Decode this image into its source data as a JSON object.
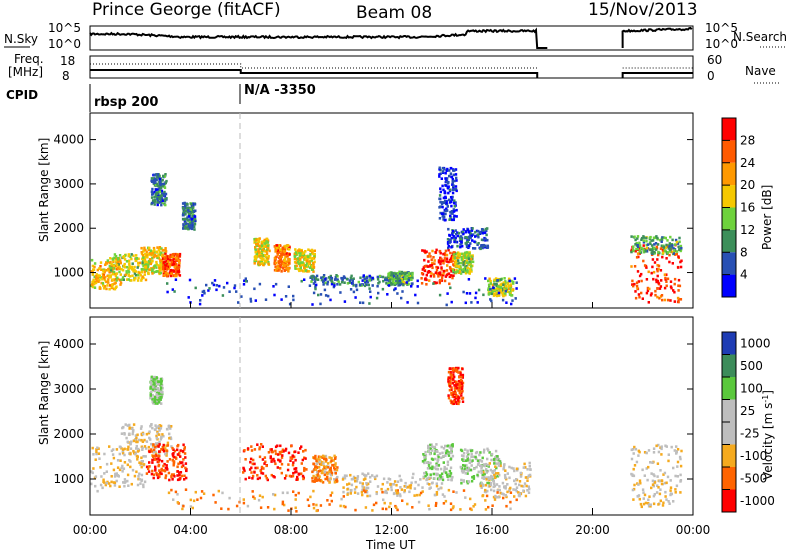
{
  "header": {
    "station": "Prince George (fitACF)",
    "beam": "Beam 08",
    "date": "15/Nov/2013"
  },
  "labels": {
    "nsky": "N.Sky",
    "nsearch": "N.Search",
    "freq_line1": "Freq.",
    "freq_line2": "[MHz]",
    "nave": "Nave",
    "cpid": "CPID",
    "nsky_top": "10^5",
    "nsky_bottom": "10^0",
    "nsearch_top": "10^5",
    "nsearch_bottom": "10^0",
    "freq_top": "18",
    "freq_bottom": "8",
    "nave_top": "60",
    "nave_bottom": "0"
  },
  "cpid": [
    {
      "text": "rbsp 200",
      "start": "00:00"
    },
    {
      "text": "N/A -3350",
      "start": "06:00"
    }
  ],
  "chart_data": [
    {
      "type": "heatmap",
      "panel": "power",
      "ylabel": "Slant Range [km]",
      "ylim": [
        200,
        4600
      ],
      "yticks": [
        1000,
        2000,
        3000,
        4000
      ],
      "colorbar": {
        "label": "Power [dB]",
        "ticks": [
          "28",
          "24",
          "20",
          "16",
          "12",
          "8",
          "4"
        ],
        "colors": [
          "#ff0000",
          "#ff5a00",
          "#ff9900",
          "#f5c800",
          "#6ed23c",
          "#3c8f5a",
          "#2850b4",
          "#0000ff"
        ]
      },
      "blobs": [
        {
          "t": 0.6,
          "r": 1000,
          "dt": 0.6,
          "dr": 350,
          "v": 20
        },
        {
          "t": 1.5,
          "r": 1150,
          "dt": 0.8,
          "dr": 300,
          "v": 16
        },
        {
          "t": 2.5,
          "r": 1300,
          "dt": 0.5,
          "dr": 300,
          "v": 18
        },
        {
          "t": 3.2,
          "r": 1200,
          "dt": 0.35,
          "dr": 250,
          "v": 26
        },
        {
          "t": 2.7,
          "r": 2900,
          "dt": 0.3,
          "dr": 350,
          "v": 8
        },
        {
          "t": 3.9,
          "r": 2300,
          "dt": 0.25,
          "dr": 300,
          "v": 8
        },
        {
          "t": 6.8,
          "r": 1500,
          "dt": 0.3,
          "dr": 300,
          "v": 18
        },
        {
          "t": 7.6,
          "r": 1350,
          "dt": 0.3,
          "dr": 300,
          "v": 24
        },
        {
          "t": 8.5,
          "r": 1300,
          "dt": 0.4,
          "dr": 250,
          "v": 18
        },
        {
          "t": 10.5,
          "r": 850,
          "dt": 1.8,
          "dr": 120,
          "v": 8
        },
        {
          "t": 12.3,
          "r": 900,
          "dt": 0.5,
          "dr": 150,
          "v": 12
        },
        {
          "t": 13.8,
          "r": 1150,
          "dt": 0.7,
          "dr": 400,
          "v": 28
        },
        {
          "t": 14.8,
          "r": 1250,
          "dt": 0.4,
          "dr": 250,
          "v": 16
        },
        {
          "t": 14.2,
          "r": 2800,
          "dt": 0.35,
          "dr": 600,
          "v": 4
        },
        {
          "t": 15.0,
          "r": 1800,
          "dt": 0.8,
          "dr": 250,
          "v": 6
        },
        {
          "t": 16.3,
          "r": 700,
          "dt": 0.5,
          "dr": 200,
          "v": 16
        },
        {
          "t": 10.0,
          "r": 600,
          "dt": 7.0,
          "dr": 300,
          "v": 4
        },
        {
          "t": 22.5,
          "r": 1000,
          "dt": 1.0,
          "dr": 650,
          "v": 28
        },
        {
          "t": 22.5,
          "r": 1650,
          "dt": 1.0,
          "dr": 200,
          "v": 12
        }
      ]
    },
    {
      "type": "heatmap",
      "panel": "velocity",
      "ylabel": "Slant Range [km]",
      "xlabel": "Time UT",
      "ylim": [
        200,
        4600
      ],
      "yticks": [
        1000,
        2000,
        3000,
        4000
      ],
      "xticks": [
        "00:00",
        "04:00",
        "08:00",
        "12:00",
        "16:00",
        "20:00",
        "00:00"
      ],
      "colorbar": {
        "label": "Velocity [m s^-1]",
        "ticks": [
          "1000",
          "500",
          "100",
          "25",
          "-25",
          "-100",
          "-500",
          "-1000"
        ],
        "colors": [
          "#1e3cb4",
          "#3c8c5a",
          "#5ac83c",
          "#bebebe",
          "#bebebe",
          "#f5aa1e",
          "#ff6400",
          "#ff0000"
        ]
      },
      "blobs": [
        {
          "t": 0.9,
          "r": 1250,
          "dt": 1.3,
          "dr": 500,
          "v": 0
        },
        {
          "t": 2.2,
          "r": 1900,
          "dt": 1.0,
          "dr": 350,
          "v": 0
        },
        {
          "t": 3.0,
          "r": 1400,
          "dt": 0.8,
          "dr": 400,
          "v": -500
        },
        {
          "t": 2.6,
          "r": 3000,
          "dt": 0.25,
          "dr": 300,
          "v": 100
        },
        {
          "t": 7.3,
          "r": 1400,
          "dt": 1.3,
          "dr": 400,
          "v": -500
        },
        {
          "t": 9.3,
          "r": 1250,
          "dt": 0.5,
          "dr": 300,
          "v": -100
        },
        {
          "t": 12.0,
          "r": 900,
          "dt": 2.0,
          "dr": 250,
          "v": 0
        },
        {
          "t": 13.8,
          "r": 1400,
          "dt": 0.6,
          "dr": 400,
          "v": 100
        },
        {
          "t": 14.5,
          "r": 3100,
          "dt": 0.3,
          "dr": 400,
          "v": -500
        },
        {
          "t": 15.5,
          "r": 1300,
          "dt": 0.8,
          "dr": 400,
          "v": 100
        },
        {
          "t": 16.5,
          "r": 1000,
          "dt": 1.0,
          "dr": 400,
          "v": 0
        },
        {
          "t": 10.0,
          "r": 550,
          "dt": 7.0,
          "dr": 250,
          "v": -100
        },
        {
          "t": 22.5,
          "r": 1100,
          "dt": 1.0,
          "dr": 700,
          "v": 0
        }
      ]
    }
  ]
}
